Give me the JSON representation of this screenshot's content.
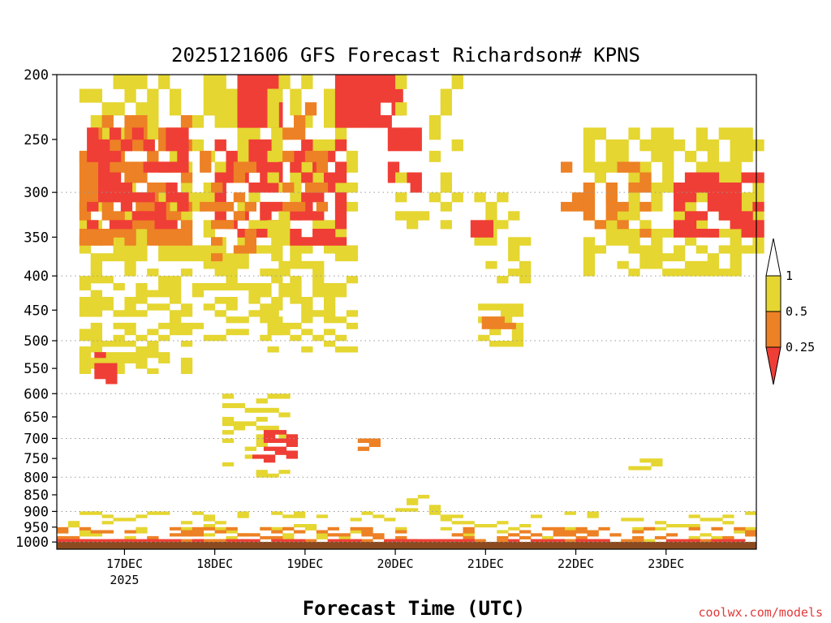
{
  "chart_data": {
    "type": "heatmap",
    "title": "2025121606 GFS Forecast Richardson# KPNS",
    "xlabel": "Forecast Time (UTC)",
    "ylabel": "",
    "credit": "coolwx.com/models",
    "x_axis": {
      "range_hours": [
        0,
        186
      ],
      "ticks": [
        {
          "hour": 18,
          "label": "17DEC",
          "sublabel": "2025"
        },
        {
          "hour": 42,
          "label": "18DEC",
          "sublabel": ""
        },
        {
          "hour": 66,
          "label": "19DEC",
          "sublabel": ""
        },
        {
          "hour": 90,
          "label": "20DEC",
          "sublabel": ""
        },
        {
          "hour": 114,
          "label": "21DEC",
          "sublabel": ""
        },
        {
          "hour": 138,
          "label": "22DEC",
          "sublabel": ""
        },
        {
          "hour": 162,
          "label": "23DEC",
          "sublabel": ""
        }
      ]
    },
    "y_axis": {
      "units": "hPa",
      "range": [
        1025,
        200
      ],
      "ticks": [
        200,
        250,
        300,
        350,
        400,
        450,
        500,
        550,
        600,
        650,
        700,
        750,
        800,
        850,
        900,
        950,
        1000
      ],
      "tick_labels": [
        "200",
        "250",
        "300",
        "350",
        "400",
        "450",
        "500",
        "550",
        "600",
        "650",
        "700",
        "750",
        "800",
        "850",
        "900",
        "950",
        "1000"
      ],
      "dotted_gridlines_at": [
        300,
        400,
        500,
        600,
        700,
        800,
        900,
        1000
      ]
    },
    "legend": {
      "placement": "right",
      "levels": [
        "1",
        "0.5",
        "0.25"
      ],
      "classes": [
        {
          "range": "Ri > 1",
          "color": "#ffffff"
        },
        {
          "range": "0.5 - 1",
          "color": "#e5d631"
        },
        {
          "range": "0.25 - 0.5",
          "color": "#ed8125"
        },
        {
          "range": "Ri < 0.25",
          "color": "#ef3e36"
        }
      ]
    },
    "ground_color": "#8b4a1f",
    "cell_hours": 3,
    "regions": [
      {
        "class": 1,
        "h": [
          6,
          36
        ],
        "p": [
          200,
          560
        ],
        "density": 0.55
      },
      {
        "class": 2,
        "h": [
          6,
          34
        ],
        "p": [
          230,
          360
        ],
        "density": 0.55
      },
      {
        "class": 3,
        "h": [
          8,
          34
        ],
        "p": [
          240,
          340
        ],
        "density": 0.45
      },
      {
        "class": 3,
        "h": [
          10,
          16
        ],
        "p": [
          520,
          580
        ],
        "density": 0.7
      },
      {
        "class": 1,
        "h": [
          36,
          58
        ],
        "p": [
          200,
          500
        ],
        "density": 0.5
      },
      {
        "class": 3,
        "h": [
          42,
          58
        ],
        "p": [
          250,
          350
        ],
        "density": 0.45
      },
      {
        "class": 2,
        "h": [
          38,
          52
        ],
        "p": [
          260,
          380
        ],
        "density": 0.4
      },
      {
        "class": 3,
        "h": [
          48,
          60
        ],
        "p": [
          200,
          240
        ],
        "density": 0.75
      },
      {
        "class": 1,
        "h": [
          56,
          80
        ],
        "p": [
          200,
          520
        ],
        "density": 0.45
      },
      {
        "class": 3,
        "h": [
          62,
          76
        ],
        "p": [
          250,
          360
        ],
        "density": 0.45
      },
      {
        "class": 2,
        "h": [
          60,
          72
        ],
        "p": [
          220,
          320
        ],
        "density": 0.35
      },
      {
        "class": 3,
        "h": [
          74,
          90
        ],
        "p": [
          200,
          240
        ],
        "density": 0.8
      },
      {
        "class": 3,
        "h": [
          88,
          96
        ],
        "p": [
          240,
          300
        ],
        "density": 0.5
      },
      {
        "class": 1,
        "h": [
          90,
          108
        ],
        "p": [
          200,
          340
        ],
        "density": 0.3
      },
      {
        "class": 1,
        "h": [
          108,
          124
        ],
        "p": [
          300,
          420
        ],
        "density": 0.3
      },
      {
        "class": 3,
        "h": [
          110,
          116
        ],
        "p": [
          320,
          345
        ],
        "density": 0.8
      },
      {
        "class": 1,
        "h": [
          112,
          124
        ],
        "p": [
          440,
          510
        ],
        "density": 0.7
      },
      {
        "class": 2,
        "h": [
          113,
          120
        ],
        "p": [
          445,
          480
        ],
        "density": 0.7
      },
      {
        "class": 1,
        "h": [
          140,
          186
        ],
        "p": [
          240,
          400
        ],
        "density": 0.6
      },
      {
        "class": 2,
        "h": [
          134,
          158
        ],
        "p": [
          270,
          350
        ],
        "density": 0.45
      },
      {
        "class": 3,
        "h": [
          164,
          186
        ],
        "p": [
          280,
          350
        ],
        "density": 0.6
      },
      {
        "class": 1,
        "h": [
          44,
          62
        ],
        "p": [
          600,
          800
        ],
        "density": 0.25
      },
      {
        "class": 3,
        "h": [
          52,
          64
        ],
        "p": [
          680,
          760
        ],
        "density": 0.45
      },
      {
        "class": 2,
        "h": [
          80,
          86
        ],
        "p": [
          700,
          730
        ],
        "density": 0.6
      },
      {
        "class": 1,
        "h": [
          152,
          160
        ],
        "p": [
          745,
          790
        ],
        "density": 0.6
      },
      {
        "class": 1,
        "h": [
          90,
          100
        ],
        "p": [
          850,
          900
        ],
        "density": 0.6
      },
      {
        "class": 1,
        "h": [
          0,
          186
        ],
        "p": [
          900,
          1000
        ],
        "density": 0.18
      },
      {
        "class": 2,
        "h": [
          0,
          186
        ],
        "p": [
          950,
          1015
        ],
        "density": 0.3
      },
      {
        "class": 3,
        "h": [
          0,
          186
        ],
        "p": [
          985,
          1020
        ],
        "density": 0.65
      }
    ]
  }
}
